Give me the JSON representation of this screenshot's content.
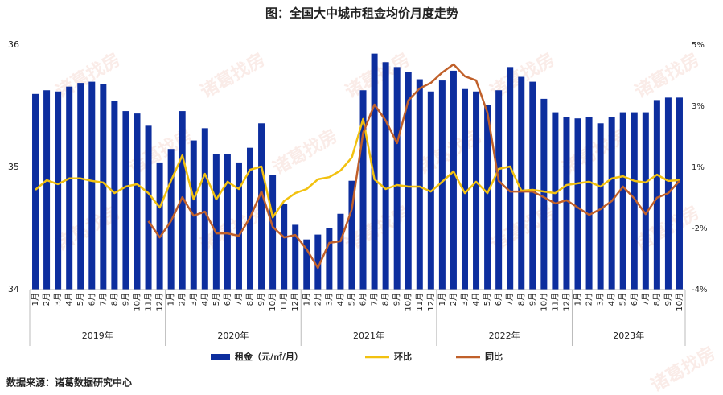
{
  "chart_data": {
    "type": "bar_line",
    "title": "图：全国大中城市租金均价月度走势",
    "source": "数据来源：诸葛数据研究中心",
    "watermark": "诸葛找房",
    "categories": [
      "1月",
      "2月",
      "3月",
      "4月",
      "5月",
      "6月",
      "7月",
      "8月",
      "9月",
      "10月",
      "11月",
      "12月",
      "1月",
      "2月",
      "3月",
      "4月",
      "5月",
      "6月",
      "7月",
      "8月",
      "9月",
      "10月",
      "11月",
      "12月",
      "1月",
      "2月",
      "3月",
      "4月",
      "5月",
      "6月",
      "7月",
      "8月",
      "9月",
      "10月",
      "11月",
      "12月",
      "1月",
      "2月",
      "3月",
      "4月",
      "5月",
      "6月",
      "7月",
      "8月",
      "9月",
      "10月",
      "11月",
      "12月",
      "1月",
      "2月",
      "3月",
      "4月",
      "5月",
      "6月",
      "7月",
      "8月",
      "9月",
      "10月"
    ],
    "years": [
      "2019年",
      "2020年",
      "2021年",
      "2022年",
      "2023年"
    ],
    "series": [
      {
        "name": "租金（元/㎡/月）",
        "color": "#0d2e9e",
        "kind": "bar",
        "axis": "y",
        "values": [
          35.6,
          35.63,
          35.62,
          35.66,
          35.69,
          35.7,
          35.68,
          35.54,
          35.46,
          35.44,
          35.34,
          35.04,
          35.15,
          35.46,
          35.22,
          35.32,
          35.11,
          35.11,
          35.04,
          35.16,
          35.36,
          34.94,
          34.7,
          34.53,
          34.41,
          34.45,
          34.5,
          34.62,
          34.89,
          35.63,
          35.93,
          35.86,
          35.82,
          35.78,
          35.72,
          35.62,
          35.71,
          35.79,
          35.64,
          35.62,
          35.51,
          35.63,
          35.82,
          35.74,
          35.7,
          35.56,
          35.45,
          35.41,
          35.4,
          35.41,
          35.36,
          35.41,
          35.45,
          35.45,
          35.45,
          35.55,
          35.57,
          35.57
        ]
      },
      {
        "name": "环比",
        "color": "#f2c10f",
        "kind": "line",
        "axis": "y2",
        "values": [
          -0.33,
          0.03,
          -0.12,
          0.09,
          0.09,
          0.0,
          -0.06,
          -0.45,
          -0.21,
          -0.12,
          -0.45,
          -0.98,
          0.0,
          0.94,
          -0.68,
          0.26,
          -0.68,
          -0.03,
          -0.3,
          0.41,
          0.53,
          -1.34,
          -0.74,
          -0.45,
          -0.3,
          0.06,
          0.14,
          0.38,
          0.86,
          2.28,
          0.06,
          -0.3,
          -0.15,
          -0.21,
          -0.21,
          -0.39,
          -0.03,
          0.35,
          -0.45,
          -0.03,
          -0.45,
          0.44,
          0.53,
          -0.36,
          -0.33,
          -0.39,
          -0.45,
          -0.15,
          -0.09,
          -0.03,
          -0.21,
          0.09,
          0.17,
          0.0,
          -0.06,
          0.23,
          0.0,
          0.03
        ]
      },
      {
        "name": "同比",
        "color": "#c0602a",
        "kind": "line",
        "axis": "y2",
        "values": [
          null,
          null,
          null,
          null,
          null,
          null,
          null,
          null,
          null,
          null,
          -1.48,
          -2.08,
          -1.48,
          -0.6,
          -1.28,
          -1.13,
          -1.93,
          -1.93,
          -2.02,
          -1.34,
          -0.39,
          -1.69,
          -2.08,
          -1.99,
          -2.52,
          -3.2,
          -2.28,
          -2.22,
          -1.04,
          1.77,
          2.81,
          2.22,
          1.39,
          2.96,
          3.4,
          3.61,
          3.99,
          4.29,
          3.85,
          3.7,
          2.51,
          0.0,
          -0.39,
          -0.39,
          -0.39,
          -0.6,
          -0.83,
          -0.71,
          -0.98,
          -1.25,
          -1.04,
          -0.74,
          -0.21,
          -0.65,
          -1.22,
          -0.62,
          -0.45,
          0.0
        ]
      }
    ],
    "ylim": [
      34,
      36
    ],
    "yticks": [
      34,
      35,
      36
    ],
    "y2lim": [
      -4,
      5
    ],
    "y2ticks": [
      {
        "value": -4,
        "label": "-4%"
      },
      {
        "value": -1.75,
        "label": "-2%"
      },
      {
        "value": 0.5,
        "label": "1%"
      },
      {
        "value": 2.75,
        "label": "3%"
      },
      {
        "value": 5,
        "label": "5%"
      }
    ]
  }
}
